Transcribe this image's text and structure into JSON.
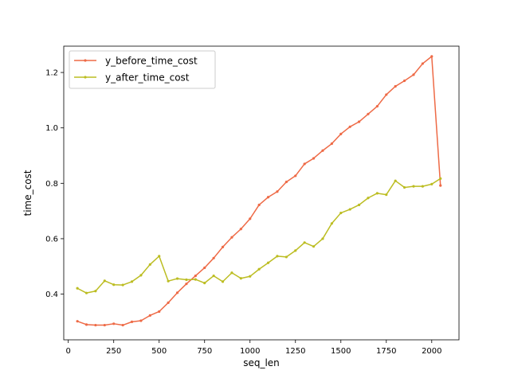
{
  "chart_data": {
    "type": "line",
    "xlabel": "seq_len",
    "ylabel": "time_cost",
    "xlim": [
      -25,
      2150
    ],
    "ylim": [
      0.235,
      1.295
    ],
    "xticks": [
      0,
      250,
      500,
      750,
      1000,
      1250,
      1500,
      1750,
      2000
    ],
    "yticks": [
      0.4,
      0.6,
      0.8,
      1.0,
      1.2
    ],
    "ytick_labels": [
      "0.4",
      "0.6",
      "0.8",
      "1.0",
      "1.2"
    ],
    "grid": false,
    "legend_position": "upper-left",
    "x": [
      50,
      100,
      150,
      200,
      250,
      300,
      350,
      400,
      450,
      500,
      550,
      600,
      650,
      700,
      750,
      800,
      850,
      900,
      950,
      1000,
      1050,
      1100,
      1150,
      1200,
      1250,
      1300,
      1350,
      1400,
      1450,
      1500,
      1550,
      1600,
      1650,
      1700,
      1750,
      1800,
      1850,
      1900,
      1950,
      2000,
      2048
    ],
    "series": [
      {
        "name": "y_before_time_cost",
        "color": "#ee6a46",
        "values": [
          0.302,
          0.29,
          0.288,
          0.288,
          0.293,
          0.288,
          0.3,
          0.304,
          0.323,
          0.337,
          0.369,
          0.405,
          0.437,
          0.466,
          0.495,
          0.53,
          0.57,
          0.605,
          0.635,
          0.672,
          0.722,
          0.75,
          0.77,
          0.805,
          0.827,
          0.87,
          0.89,
          0.918,
          0.943,
          0.978,
          1.004,
          1.022,
          1.05,
          1.078,
          1.12,
          1.15,
          1.17,
          1.192,
          1.232,
          1.258,
          0.792
        ]
      },
      {
        "name": "y_after_time_cost",
        "color": "#bcbd22",
        "values": [
          0.421,
          0.404,
          0.411,
          0.448,
          0.434,
          0.433,
          0.445,
          0.468,
          0.507,
          0.537,
          0.447,
          0.456,
          0.452,
          0.453,
          0.44,
          0.466,
          0.445,
          0.477,
          0.457,
          0.464,
          0.49,
          0.513,
          0.537,
          0.534,
          0.557,
          0.586,
          0.572,
          0.6,
          0.655,
          0.693,
          0.706,
          0.722,
          0.747,
          0.764,
          0.759,
          0.809,
          0.785,
          0.789,
          0.789,
          0.797,
          0.817
        ]
      }
    ]
  }
}
